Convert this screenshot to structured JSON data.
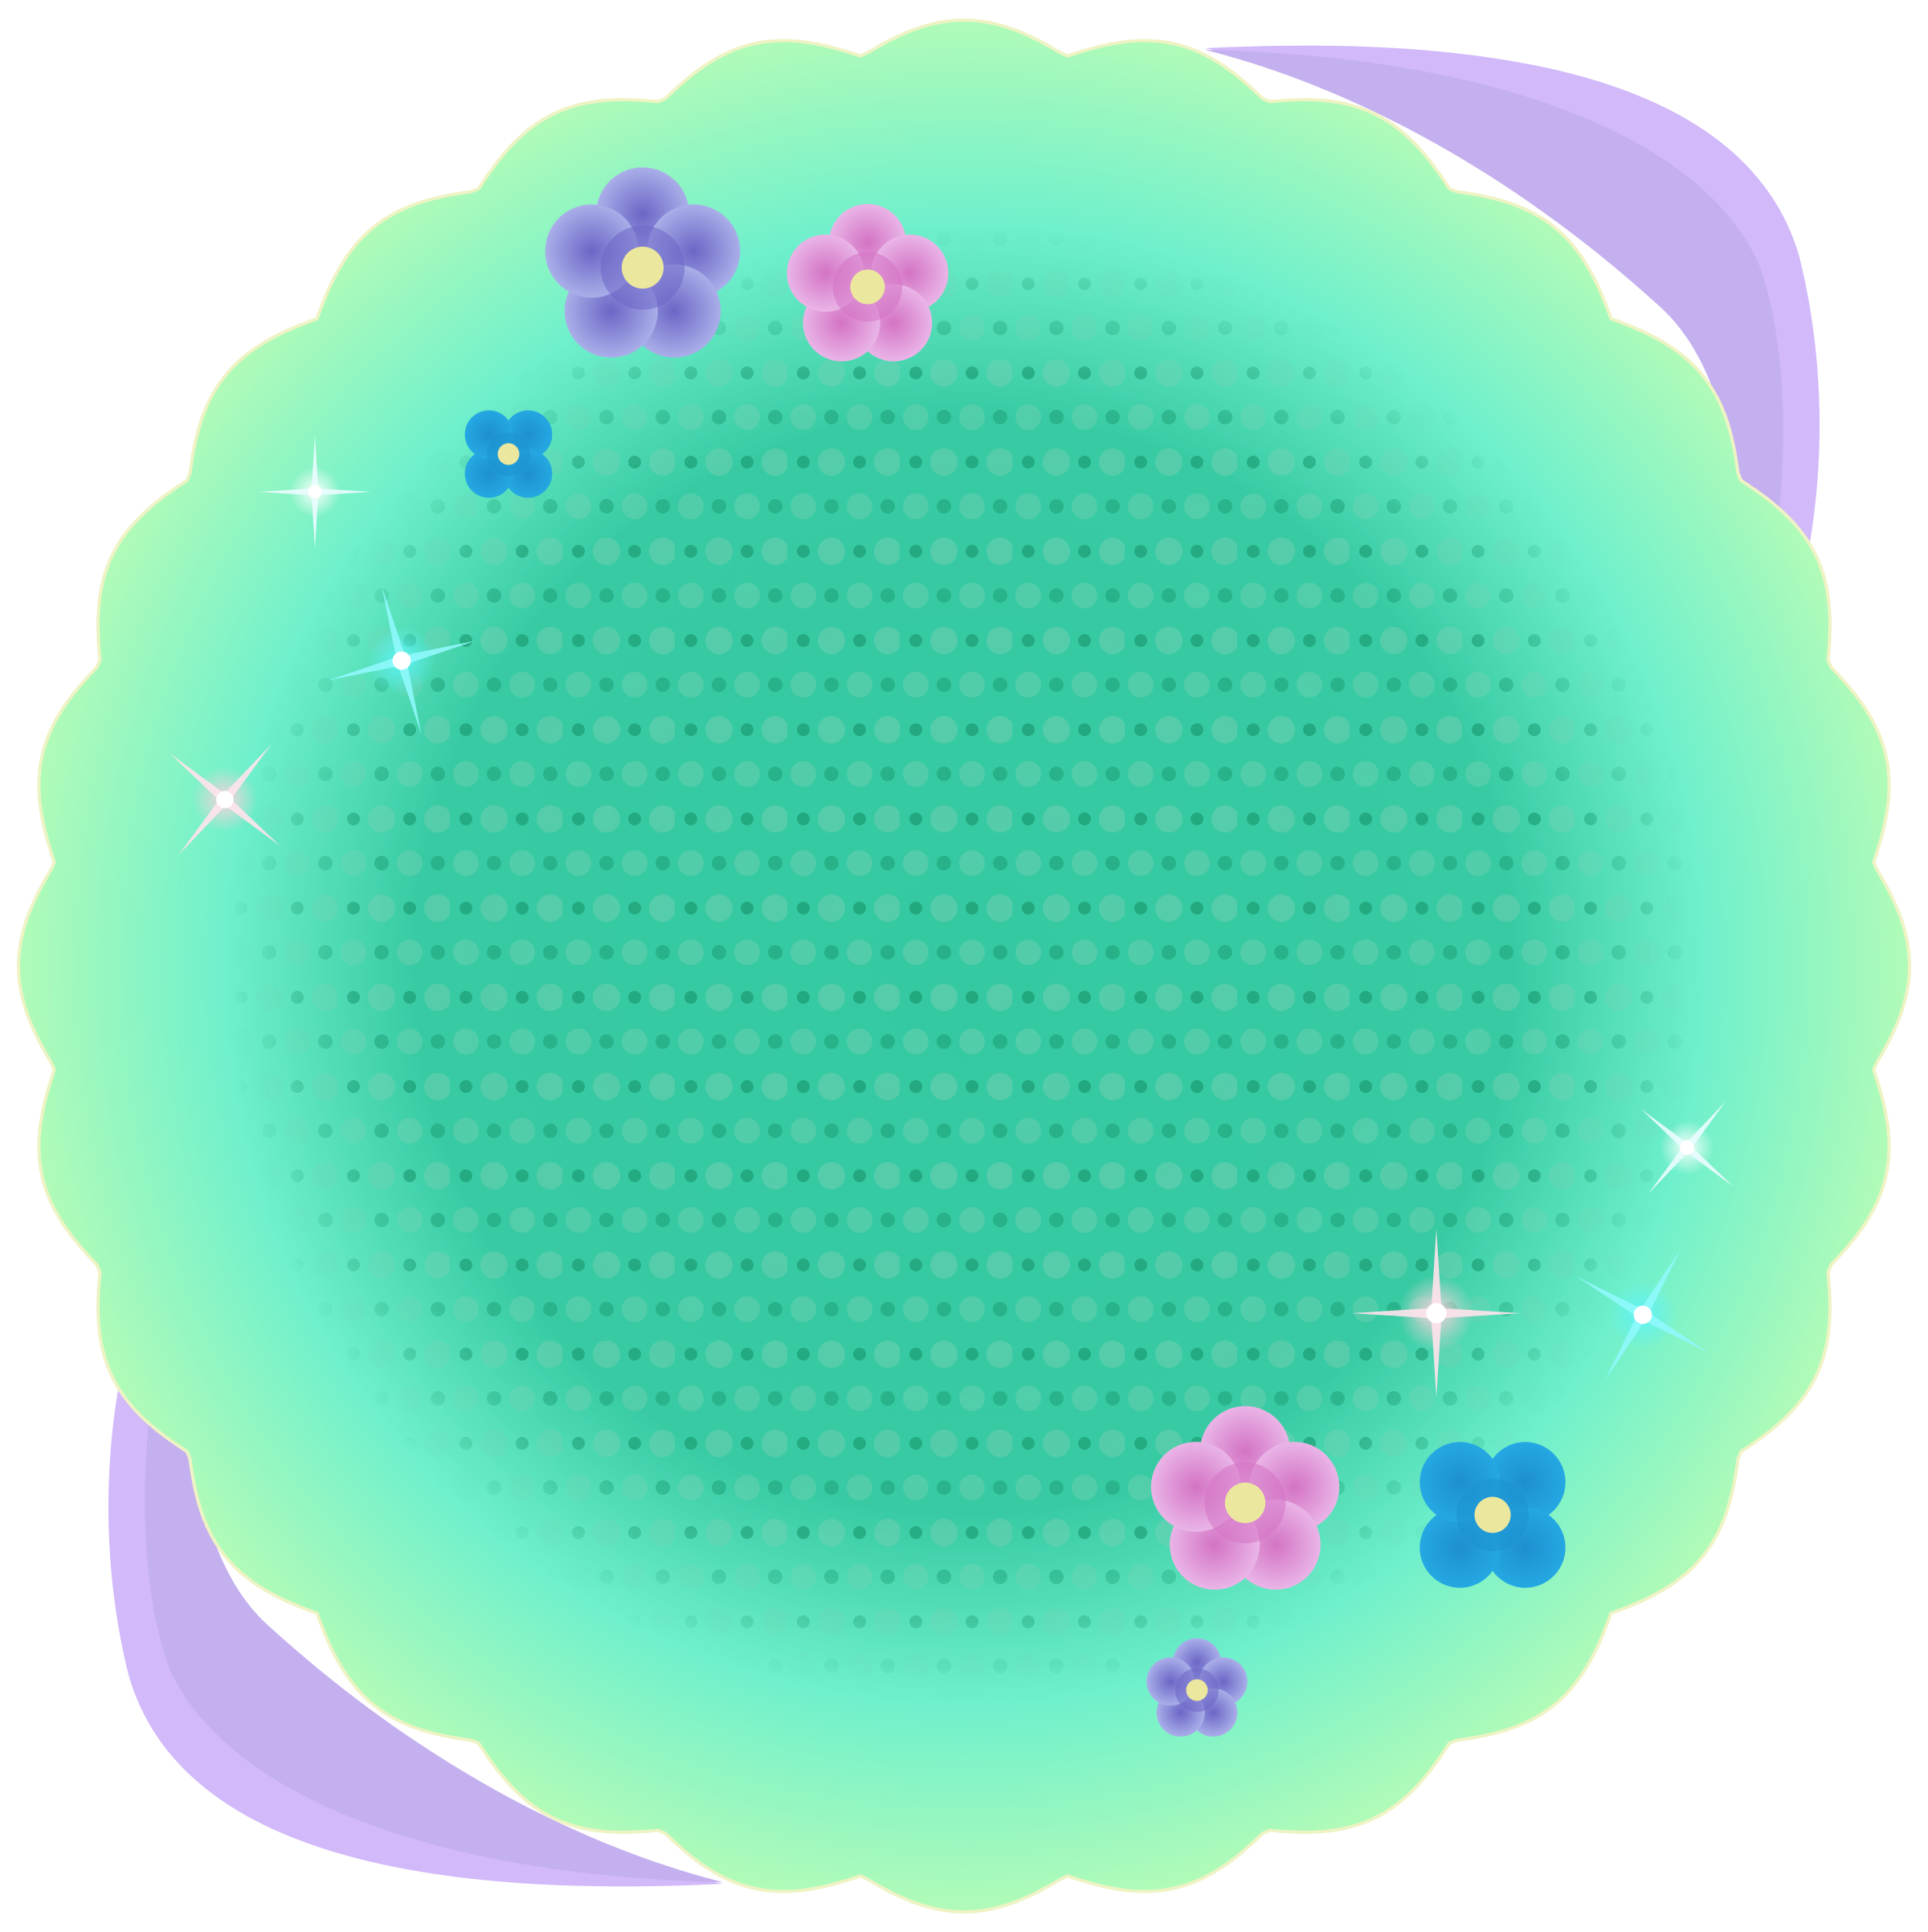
{
  "colors": {
    "background": "#ffffff",
    "outer_badge": "#b2fbb8",
    "badge_outline": "#eef3c4",
    "badge_mid": "#6ff0cc",
    "badge_center": "#34c9a1",
    "dots_dark": "#1c9c72",
    "dots_light": "#7fd1b6",
    "swoosh_light": "#d1b9fa",
    "swoosh_dark": "#c5b0ef",
    "flower_lavender": "#a9b1ea",
    "flower_lavender_center": "#6b66c6",
    "flower_pink": "#e5b0e4",
    "flower_pink_center": "#d373c4",
    "flower_blue": "#25a8e2",
    "flower_blue_center": "#1e92cf",
    "flower_core": "#ece79e",
    "sparkle_white": "#eafcff",
    "sparkle_cyan": "#5ff3f9",
    "sparkle_pink": "#ffd0dd"
  },
  "elements": {
    "badge": "scalloped-round-badge",
    "swooshes": [
      "purple-swoosh-top-right",
      "purple-swoosh-bottom-left"
    ],
    "pattern": "halftone-dot-pattern",
    "flowers": [
      {
        "name": "lavender-flower",
        "color": "lavender"
      },
      {
        "name": "pink-flower",
        "color": "pink"
      },
      {
        "name": "blue-flower",
        "color": "blue"
      },
      {
        "name": "pink-flower",
        "color": "pink"
      },
      {
        "name": "blue-flower",
        "color": "blue"
      },
      {
        "name": "lavender-flower",
        "color": "lavender"
      }
    ],
    "sparkles": [
      "white",
      "cyan",
      "pink",
      "white",
      "pink",
      "cyan"
    ]
  }
}
